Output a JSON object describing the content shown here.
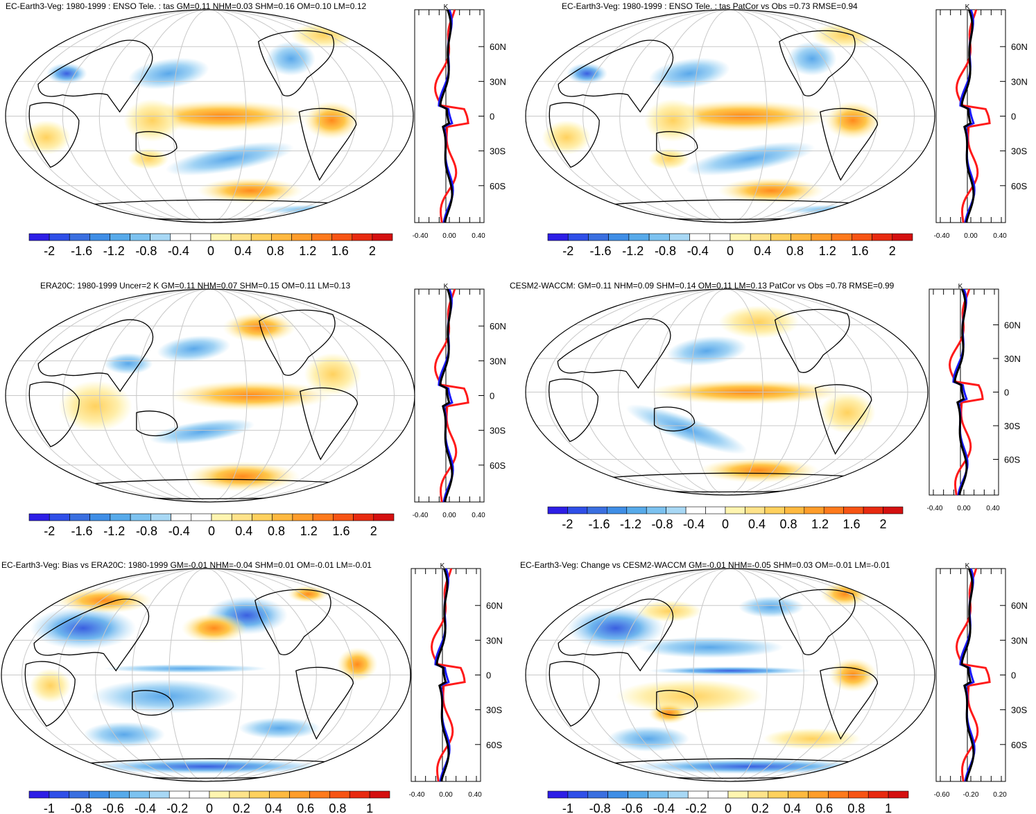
{
  "colors": {
    "scale": [
      "#2d1ee6",
      "#2f4fe8",
      "#3a6fe0",
      "#3f8ee6",
      "#57aaea",
      "#7cc2f0",
      "#a8d8f5",
      "#ffffff",
      "#ffffff",
      "#fff5b0",
      "#ffe38a",
      "#ffd15e",
      "#ffb940",
      "#ff9d2a",
      "#ff7a1c",
      "#f75414",
      "#e82a10",
      "#d41010"
    ],
    "land_outline": "#000000",
    "grid": "#c8c8c8",
    "line_model": "#ff1a1a",
    "line_ref": "#1a1aff",
    "line_total": "#000000"
  },
  "panels": [
    {
      "title": "EC-Earth3-Veg: 1980-1999 : ENSO Tele. : tas GM=0.11 NHM=0.03 SHM=0.16 OM=0.10 LM=0.12",
      "unit": "K",
      "lat_labels": [
        "60N",
        "30N",
        "0",
        "30S",
        "60S"
      ],
      "profile_ticks": [
        "-0.40",
        "0.00",
        "0.40"
      ],
      "colorbar_labels": [
        "-2",
        "-1.6",
        "-1.2",
        "-0.8",
        "-0.4",
        "0",
        "0.4",
        "0.8",
        "1.2",
        "1.6",
        "2"
      ]
    },
    {
      "title": "EC-Earth3-Veg: 1980-1999 : ENSO Tele. : tas PatCor vs Obs =0.73 RMSE=0.94",
      "unit": "K",
      "lat_labels": [
        "60N",
        "30N",
        "0",
        "30S",
        "60S"
      ],
      "profile_ticks": [
        "-0.40",
        "0.00",
        "0.40"
      ],
      "colorbar_labels": [
        "-2",
        "-1.6",
        "-1.2",
        "-0.8",
        "-0.4",
        "0",
        "0.4",
        "0.8",
        "1.2",
        "1.6",
        "2"
      ]
    },
    {
      "title": "ERA20C: 1980-1999 Uncer=2 K GM=0.11 NHM=0.07 SHM=0.15 OM=0.11 LM=0.13",
      "unit": "K",
      "lat_labels": [
        "60N",
        "30N",
        "0",
        "30S",
        "60S"
      ],
      "profile_ticks": [
        "-0.40",
        "0.00",
        "0.40"
      ],
      "colorbar_labels": [
        "-2",
        "-1.6",
        "-1.2",
        "-0.8",
        "-0.4",
        "0",
        "0.4",
        "0.8",
        "1.2",
        "1.6",
        "2"
      ]
    },
    {
      "title": "CESM2-WACCM: GM=0.11 NHM=0.09 SHM=0.14 OM=0.11 LM=0.13 PatCor vs Obs =0.78 RMSE=0.99",
      "unit": "K",
      "lat_labels": [
        "60N",
        "30N",
        "0",
        "30S",
        "60S"
      ],
      "profile_ticks": [
        "-0.40",
        "0.00",
        "0.40"
      ],
      "colorbar_labels": [
        "-2",
        "-1.6",
        "-1.2",
        "-0.8",
        "-0.4",
        "0",
        "0.4",
        "0.8",
        "1.2",
        "1.6",
        "2"
      ]
    },
    {
      "title": "EC-Earth3-Veg: Bias vs ERA20C: 1980-1999 GM=-0.01 NHM=-0.04 SHM=0.01 OM=-0.01 LM=-0.01",
      "unit": "K",
      "lat_labels": [
        "60N",
        "30N",
        "0",
        "30S",
        "60S"
      ],
      "profile_ticks": [
        "-0.40",
        "0.00",
        "0.40"
      ],
      "colorbar_labels": [
        "-1",
        "-0.8",
        "-0.6",
        "-0.4",
        "-0.2",
        "0",
        "0.2",
        "0.4",
        "0.6",
        "0.8",
        "1"
      ]
    },
    {
      "title": "EC-Earth3-Veg: Change vs CESM2-WACCM GM=-0.01 NHM=-0.05 SHM=0.03 OM=-0.01 LM=-0.01",
      "unit": "K",
      "lat_labels": [
        "60N",
        "30N",
        "0",
        "30S",
        "60S"
      ],
      "profile_ticks": [
        "-0.60",
        "-0.20",
        "0.20"
      ],
      "colorbar_labels": [
        "-1",
        "-0.8",
        "-0.6",
        "-0.4",
        "-0.2",
        "0",
        "0.2",
        "0.4",
        "0.6",
        "0.8",
        "1"
      ]
    }
  ]
}
